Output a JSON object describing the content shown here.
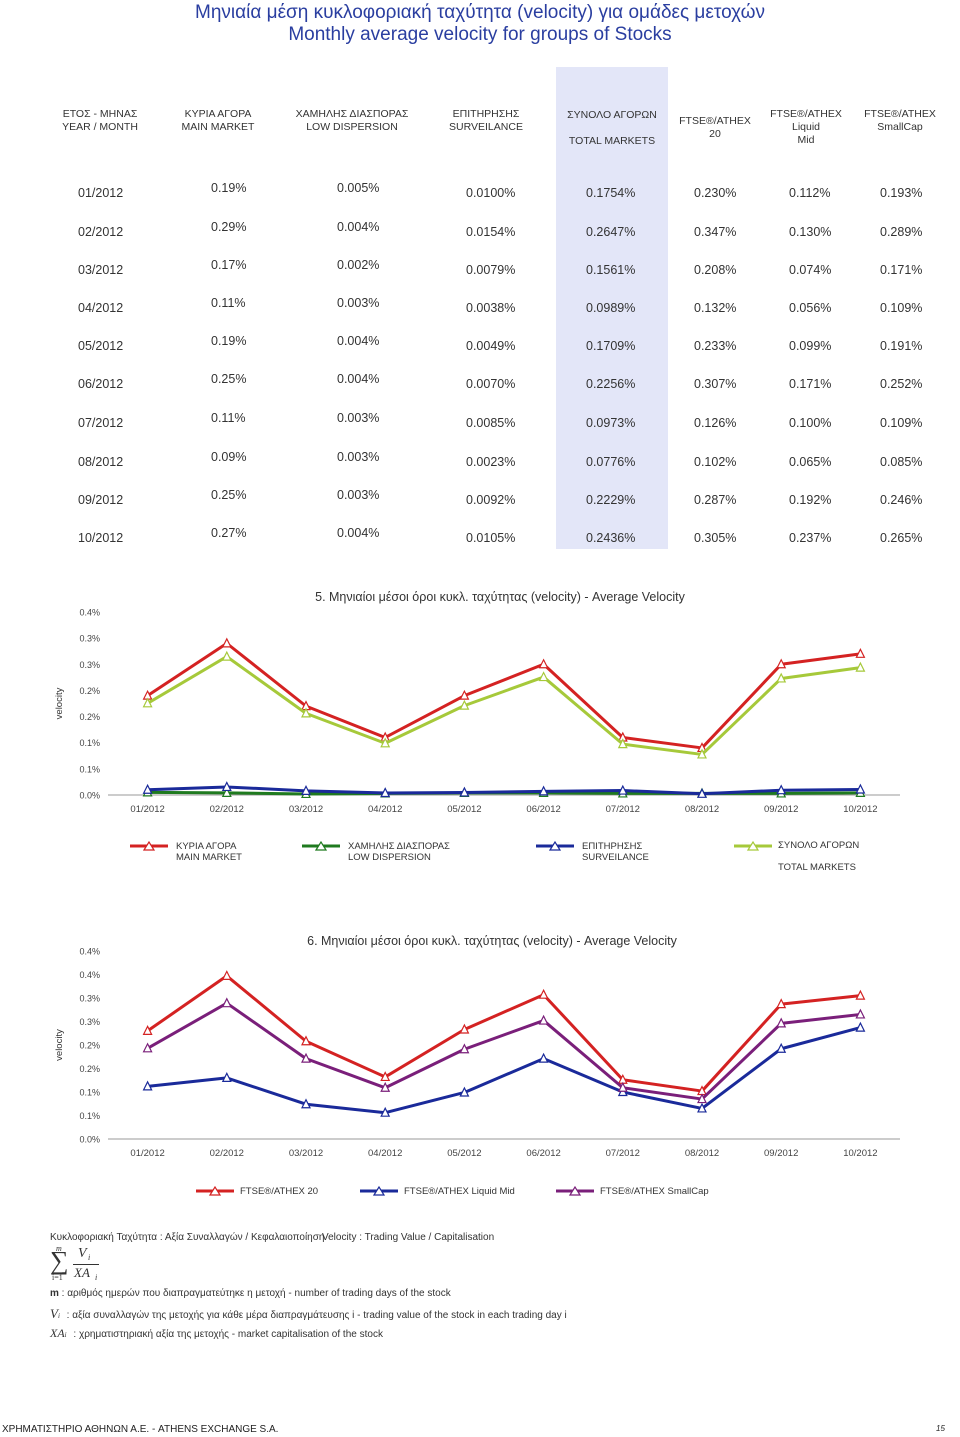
{
  "title": {
    "greek": "Μηνιαία μέση κυκλοφοριακή ταχύτητα (velocity) για ομάδες μετοχών",
    "english": "Monthly average velocity for groups of Stocks"
  },
  "table": {
    "headers": [
      {
        "l1": "ΕΤΟΣ - ΜΗΝΑΣ",
        "l2": "YEAR / MONTH"
      },
      {
        "l1": "ΚΥΡΙΑ ΑΓΟΡΑ",
        "l2": "MAIN MARKET"
      },
      {
        "l1": "ΧΑΜΗΛΗΣ ΔΙΑΣΠΟΡΑΣ",
        "l2": "LOW DISPERSION"
      },
      {
        "l1": "ΕΠΙΤΗΡΗΣΗΣ",
        "l2": "SURVEILANCE"
      },
      {
        "l1": "ΣΥΝΟΛΟ ΑΓΟΡΩΝ",
        "l2": "TOTAL MARKETS"
      },
      {
        "l1": "FTSE®/ATHEX 20",
        "l2": ""
      },
      {
        "l1": "FTSE®/ATHEX Liquid",
        "l2": "Mid"
      },
      {
        "l1": "FTSE®/ATHEX",
        "l2": "SmallCap"
      }
    ],
    "rows": [
      {
        "month": "01/2012",
        "main": "0.19%",
        "low": "0.005%",
        "surv": "0.0100%",
        "total": "0.1754%",
        "ftse20": "0.230%",
        "mid": "0.112%",
        "small": "0.193%"
      },
      {
        "month": "02/2012",
        "main": "0.29%",
        "low": "0.004%",
        "surv": "0.0154%",
        "total": "0.2647%",
        "ftse20": "0.347%",
        "mid": "0.130%",
        "small": "0.289%"
      },
      {
        "month": "03/2012",
        "main": "0.17%",
        "low": "0.002%",
        "surv": "0.0079%",
        "total": "0.1561%",
        "ftse20": "0.208%",
        "mid": "0.074%",
        "small": "0.171%"
      },
      {
        "month": "04/2012",
        "main": "0.11%",
        "low": "0.003%",
        "surv": "0.0038%",
        "total": "0.0989%",
        "ftse20": "0.132%",
        "mid": "0.056%",
        "small": "0.109%"
      },
      {
        "month": "05/2012",
        "main": "0.19%",
        "low": "0.004%",
        "surv": "0.0049%",
        "total": "0.1709%",
        "ftse20": "0.233%",
        "mid": "0.099%",
        "small": "0.191%"
      },
      {
        "month": "06/2012",
        "main": "0.25%",
        "low": "0.004%",
        "surv": "0.0070%",
        "total": "0.2256%",
        "ftse20": "0.307%",
        "mid": "0.171%",
        "small": "0.252%"
      },
      {
        "month": "07/2012",
        "main": "0.11%",
        "low": "0.003%",
        "surv": "0.0085%",
        "total": "0.0973%",
        "ftse20": "0.126%",
        "mid": "0.100%",
        "small": "0.109%"
      },
      {
        "month": "08/2012",
        "main": "0.09%",
        "low": "0.003%",
        "surv": "0.0023%",
        "total": "0.0776%",
        "ftse20": "0.102%",
        "mid": "0.065%",
        "small": "0.085%"
      },
      {
        "month": "09/2012",
        "main": "0.25%",
        "low": "0.003%",
        "surv": "0.0092%",
        "total": "0.2229%",
        "ftse20": "0.287%",
        "mid": "0.192%",
        "small": "0.246%"
      },
      {
        "month": "10/2012",
        "main": "0.27%",
        "low": "0.004%",
        "surv": "0.0105%",
        "total": "0.2436%",
        "ftse20": "0.305%",
        "mid": "0.237%",
        "small": "0.265%"
      }
    ]
  },
  "chart_data": [
    {
      "type": "line",
      "title": "5. Μηνιαίοι μέσοι όροι κυκλ. ταχύτητας (velocity) - Average Velocity",
      "xlabel": "",
      "ylabel": "velocity",
      "ylim": [
        0,
        0.35
      ],
      "y_ticks": [
        0,
        0.05,
        0.1,
        0.15,
        0.2,
        0.25,
        0.3,
        0.35
      ],
      "y_tick_labels": [
        "0.0%",
        "0.1%",
        "0.1%",
        "0.2%",
        "0.2%",
        "0.3%",
        "0.3%",
        "0.4%"
      ],
      "categories": [
        "01/2012",
        "02/2012",
        "03/2012",
        "04/2012",
        "05/2012",
        "06/2012",
        "07/2012",
        "08/2012",
        "09/2012",
        "10/2012"
      ],
      "series": [
        {
          "name": "ΚΥΡΙΑ ΑΓΟΡΑ",
          "name2": "MAIN MARKET",
          "color": "#d42222",
          "values": [
            0.19,
            0.29,
            0.17,
            0.11,
            0.19,
            0.25,
            0.11,
            0.09,
            0.25,
            0.27
          ]
        },
        {
          "name": "ΧΑΜΗΛΗΣ ΔΙΑΣΠΟΡΑΣ",
          "name2": "LOW DISPERSION",
          "color": "#1f7a1f",
          "values": [
            0.005,
            0.004,
            0.002,
            0.003,
            0.004,
            0.004,
            0.003,
            0.003,
            0.003,
            0.004
          ]
        },
        {
          "name": "ΕΠΙΤΗΡΗΣΗΣ",
          "name2": "SURVEILANCE",
          "color": "#1a2a9a",
          "values": [
            0.01,
            0.0154,
            0.0079,
            0.0038,
            0.0049,
            0.007,
            0.0085,
            0.0023,
            0.0092,
            0.0105
          ]
        },
        {
          "name": "ΣΥΝΟΛΟ ΑΓΟΡΩΝ",
          "name2": "TOTAL MARKETS",
          "color": "#a6c93a",
          "values": [
            0.1754,
            0.2647,
            0.1561,
            0.0989,
            0.1709,
            0.2256,
            0.0973,
            0.0776,
            0.2229,
            0.2436
          ]
        }
      ]
    },
    {
      "type": "line",
      "title": "6. Μηνιαίοι μέσοι όροι κυκλ. ταχύτητας (velocity) - Average Velocity",
      "xlabel": "",
      "ylabel": "velocity",
      "ylim": [
        0,
        0.4
      ],
      "y_ticks": [
        0,
        0.05,
        0.1,
        0.15,
        0.2,
        0.25,
        0.3,
        0.35,
        0.4
      ],
      "y_tick_labels": [
        "0.0%",
        "0.1%",
        "0.1%",
        "0.2%",
        "0.2%",
        "0.3%",
        "0.3%",
        "0.4%",
        "0.4%"
      ],
      "categories": [
        "01/2012",
        "02/2012",
        "03/2012",
        "04/2012",
        "05/2012",
        "06/2012",
        "07/2012",
        "08/2012",
        "09/2012",
        "10/2012"
      ],
      "series": [
        {
          "name": "FTSE®/ATHEX 20",
          "color": "#d42222",
          "values": [
            0.23,
            0.347,
            0.208,
            0.132,
            0.233,
            0.307,
            0.126,
            0.102,
            0.287,
            0.305
          ]
        },
        {
          "name": "FTSE®/ATHEX Liquid Mid",
          "color": "#1a2a9a",
          "values": [
            0.112,
            0.13,
            0.074,
            0.056,
            0.099,
            0.171,
            0.1,
            0.065,
            0.192,
            0.237
          ]
        },
        {
          "name": "FTSE®/ATHEX SmallCap",
          "color": "#7a1f7a",
          "values": [
            0.193,
            0.289,
            0.171,
            0.109,
            0.191,
            0.252,
            0.109,
            0.085,
            0.246,
            0.265
          ]
        }
      ]
    }
  ],
  "formula": {
    "definition_gr": "Κυκλοφοριακή Ταχύτητα : Αξία Συναλλαγών / Κεφαλαιοποίηση",
    "definition_en": "Velocity : Trading Value / Capitalisation",
    "sum_top": "m",
    "sum_bottom": "i=1",
    "sum_num": "V",
    "sum_den": "XA",
    "sub_i": "i",
    "m_symbol": "m",
    "m_desc": " : αριθμός ημερών που διαπραγματεύτηκε η μετοχή - number of trading days of the stock",
    "v_symbol": "V",
    "v_desc": " : αξία συναλλαγών της μετοχής για κάθε μέρα διαπραγμάτευσης i - trading value of the stock in each trading day i",
    "xa_symbol": "XA",
    "xa_desc": " : χρηματιστηριακή αξία της μετοχής - market capitalisation of the stock"
  },
  "footer": {
    "left": "ΧΡΗΜΑΤΙΣΤΗΡΙΟ ΑΘΗΝΩΝ Α.Ε. - ATHENS EXCHANGE S.A.",
    "page": "15"
  }
}
